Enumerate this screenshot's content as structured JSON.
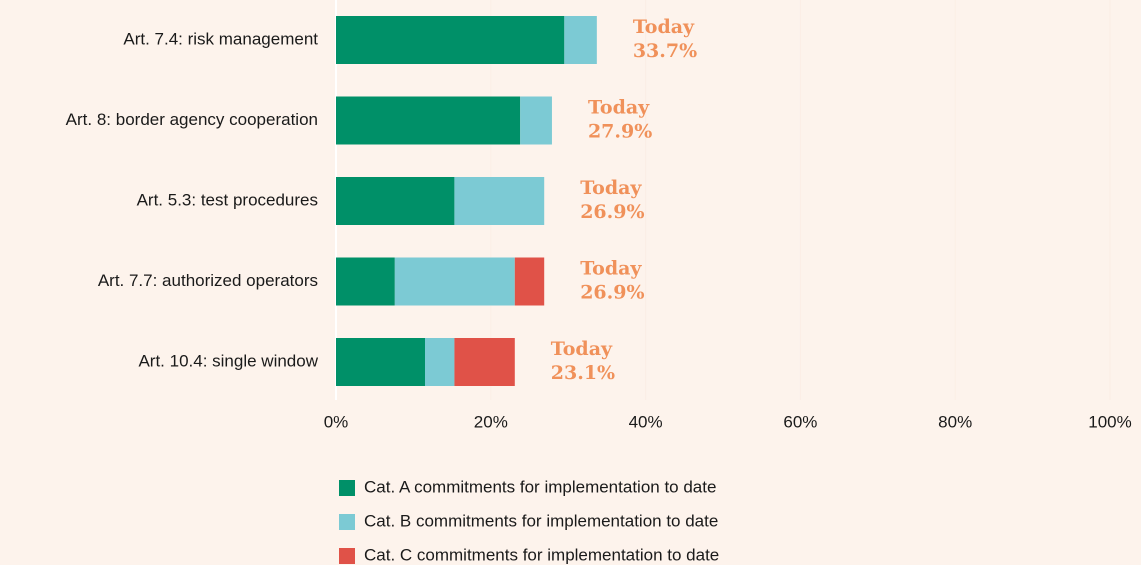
{
  "chart_data": {
    "type": "stacked-bar-horizontal",
    "categories": [
      "Art. 7.4: risk management",
      "Art. 8: border agency cooperation",
      "Art. 5.3: test procedures",
      "Art. 7.7: authorized operators",
      "Art. 10.4: single window"
    ],
    "series": [
      {
        "name": "Cat. A commitments for implementation to date",
        "color": "#009068",
        "values": [
          29.5,
          23.8,
          15.3,
          7.6,
          11.5
        ]
      },
      {
        "name": "Cat. B commitments for implementation to date",
        "color": "#7ccad4",
        "values": [
          4.2,
          4.1,
          11.6,
          15.5,
          3.8
        ]
      },
      {
        "name": "Cat. C commitments for implementation to date",
        "color": "#e05248",
        "values": [
          0,
          0,
          0,
          3.8,
          7.8
        ]
      }
    ],
    "total_prefix": "Today",
    "totals": [
      33.7,
      27.9,
      26.9,
      26.9,
      23.1
    ],
    "total_labels": [
      "33.7%",
      "27.9%",
      "26.9%",
      "26.9%",
      "23.1%"
    ],
    "total_color": "#f0915a",
    "xlim": [
      0,
      100
    ],
    "xticks": [
      {
        "value": 0,
        "label": "0%"
      },
      {
        "value": 20,
        "label": "20%"
      },
      {
        "value": 40,
        "label": "40%"
      },
      {
        "value": 60,
        "label": "60%"
      },
      {
        "value": 80,
        "label": "80%"
      },
      {
        "value": 100,
        "label": "100%"
      }
    ],
    "grid": true
  }
}
